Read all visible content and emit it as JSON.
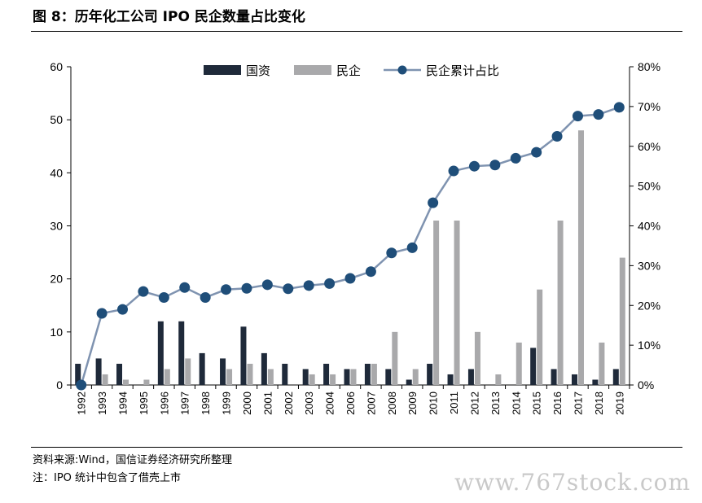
{
  "title": "图 8：历年化工公司 IPO 民企数量占比变化",
  "source": "资料来源:Wind，国信证券经济研究所整理",
  "note": "注：IPO 统计中包含了借壳上市",
  "watermark": "www.767stock.com",
  "colors": {
    "state": "#1f2a3a",
    "private": "#a9a9ab",
    "ratio_line": "#7f93b0",
    "ratio_marker": "#1f4e79"
  },
  "chart_data": {
    "type": "bar",
    "categories": [
      "1992",
      "1993",
      "1994",
      "1995",
      "1996",
      "1997",
      "1998",
      "1999",
      "2000",
      "2001",
      "2002",
      "2003",
      "2004",
      "2006",
      "2007",
      "2008",
      "2009",
      "2010",
      "2011",
      "2012",
      "2013",
      "2014",
      "2015",
      "2016",
      "2017",
      "2018",
      "2019"
    ],
    "series": [
      {
        "name": "国资",
        "type": "bar",
        "axis": "left",
        "values": [
          4,
          5,
          4,
          0,
          12,
          12,
          6,
          5,
          11,
          6,
          4,
          3,
          4,
          3,
          4,
          3,
          1,
          4,
          2,
          3,
          0,
          0,
          7,
          3,
          2,
          1,
          3
        ]
      },
      {
        "name": "民企",
        "type": "bar",
        "axis": "left",
        "values": [
          0,
          2,
          1,
          1,
          3,
          5,
          0,
          3,
          4,
          3,
          0,
          2,
          2,
          3,
          4,
          10,
          3,
          31,
          31,
          10,
          2,
          8,
          18,
          31,
          48,
          8,
          24
        ]
      },
      {
        "name": "民企累计占比",
        "type": "line",
        "axis": "right",
        "unit": "%",
        "values": [
          0,
          18,
          19,
          23.5,
          22,
          24.5,
          22,
          24,
          24.3,
          25.2,
          24.2,
          25,
          25.5,
          26.8,
          28.5,
          33.2,
          34.5,
          45.8,
          53.8,
          55,
          55.3,
          57,
          58.5,
          62.5,
          67.6,
          68,
          69.8
        ]
      }
    ],
    "y_left": {
      "min": 0,
      "max": 60,
      "ticks": [
        "0",
        "10",
        "20",
        "30",
        "40",
        "50",
        "60"
      ]
    },
    "y_right": {
      "min": 0,
      "max": 80,
      "ticks": [
        "0%",
        "10%",
        "20%",
        "30%",
        "40%",
        "50%",
        "60%",
        "70%",
        "80%"
      ]
    },
    "legend": {
      "position": "top",
      "items": [
        "国资",
        "民企",
        "民企累计占比"
      ]
    },
    "grid": false
  }
}
